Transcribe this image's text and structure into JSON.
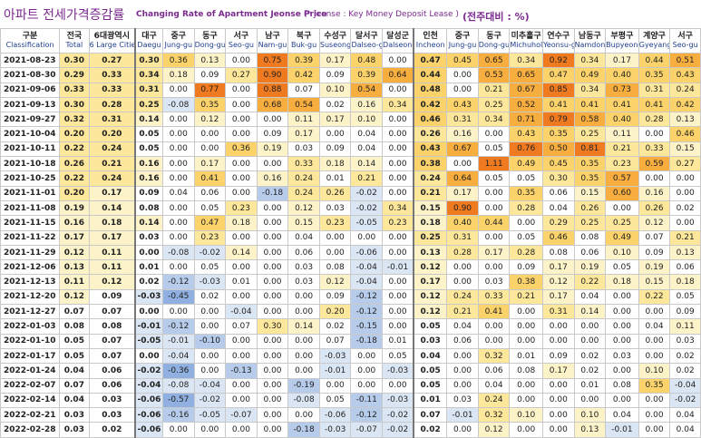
{
  "title": {
    "korean": "아파트 전세가격증감률",
    "english": "Changing Rate of Apartment Jeonse Price",
    "note": "(* Jeonse : Key Money Deposit Lease )",
    "unit": "(전주대비 : %)"
  },
  "columns": [
    {
      "ko": "구분",
      "en": "Classification"
    },
    {
      "ko": "전국",
      "en": "Total"
    },
    {
      "ko": "6대광역시",
      "en": "6 Large Cities"
    },
    {
      "ko": "대구",
      "en": "Daegu"
    },
    {
      "ko": "중구",
      "en": "Jung-gu"
    },
    {
      "ko": "동구",
      "en": "Dong-gu"
    },
    {
      "ko": "서구",
      "en": "Seo-gu"
    },
    {
      "ko": "남구",
      "en": "Nam-gu"
    },
    {
      "ko": "북구",
      "en": "Buk-gu"
    },
    {
      "ko": "수성구",
      "en": "Suseong-gu"
    },
    {
      "ko": "달서구",
      "en": "Dalseo-gu"
    },
    {
      "ko": "달성군",
      "en": "Dalseong-gun"
    },
    {
      "ko": "인천",
      "en": "Incheon"
    },
    {
      "ko": "중구",
      "en": "Jung-gu"
    },
    {
      "ko": "동구",
      "en": "Dong-gu"
    },
    {
      "ko": "미추홀구",
      "en": "Michuhol-gu"
    },
    {
      "ko": "연수구",
      "en": "Yeonsu-gu"
    },
    {
      "ko": "남동구",
      "en": "Namdong-gu"
    },
    {
      "ko": "부평구",
      "en": "Bupyeong-gu"
    },
    {
      "ko": "계양구",
      "en": "Gyeyang-gu"
    },
    {
      "ko": "서구",
      "en": "Seo-gu"
    }
  ],
  "rows": [
    {
      "date": "2021-08-23",
      "v": [
        "0.30",
        "0.27",
        "0.30",
        "0.36",
        "0.13",
        "0.00",
        "0.75",
        "0.39",
        "0.17",
        "0.48",
        "0.00",
        "0.47",
        "0.45",
        "0.65",
        "0.34",
        "0.92",
        "0.34",
        "0.17",
        "0.44",
        "0.51"
      ]
    },
    {
      "date": "2021-08-30",
      "v": [
        "0.29",
        "0.33",
        "0.34",
        "0.18",
        "0.09",
        "0.27",
        "0.90",
        "0.42",
        "0.09",
        "0.39",
        "0.64",
        "0.44",
        "0.00",
        "0.53",
        "0.65",
        "0.47",
        "0.49",
        "0.40",
        "0.35",
        "0.43"
      ]
    },
    {
      "date": "2021-09-06",
      "v": [
        "0.33",
        "0.33",
        "0.31",
        "0.00",
        "0.77",
        "0.00",
        "0.88",
        "0.07",
        "0.10",
        "0.54",
        "0.00",
        "0.48",
        "0.00",
        "0.21",
        "0.67",
        "0.85",
        "0.34",
        "0.73",
        "0.31",
        "0.24"
      ]
    },
    {
      "date": "2021-09-13",
      "v": [
        "0.30",
        "0.28",
        "0.25",
        "-0.08",
        "0.35",
        "0.00",
        "0.68",
        "0.54",
        "0.02",
        "0.16",
        "0.34",
        "0.42",
        "0.43",
        "0.25",
        "0.52",
        "0.41",
        "0.41",
        "0.41",
        "0.41",
        "0.42"
      ]
    },
    {
      "date": "2021-09-27",
      "v": [
        "0.32",
        "0.31",
        "0.14",
        "0.00",
        "0.12",
        "0.00",
        "0.00",
        "0.11",
        "0.17",
        "0.10",
        "0.00",
        "0.46",
        "0.31",
        "0.34",
        "0.71",
        "0.79",
        "0.58",
        "0.40",
        "0.28",
        "0.13"
      ]
    },
    {
      "date": "2021-10-04",
      "v": [
        "0.20",
        "0.20",
        "0.05",
        "0.00",
        "0.00",
        "0.00",
        "0.09",
        "0.17",
        "0.00",
        "0.04",
        "0.00",
        "0.26",
        "0.16",
        "0.00",
        "0.43",
        "0.35",
        "0.25",
        "0.11",
        "0.00",
        "0.46"
      ]
    },
    {
      "date": "2021-10-11",
      "v": [
        "0.22",
        "0.24",
        "0.05",
        "0.00",
        "0.00",
        "0.36",
        "0.19",
        "0.03",
        "0.09",
        "0.04",
        "0.00",
        "0.43",
        "0.67",
        "0.05",
        "0.76",
        "0.50",
        "0.81",
        "0.21",
        "0.33",
        "0.15"
      ]
    },
    {
      "date": "2021-10-18",
      "v": [
        "0.26",
        "0.21",
        "0.16",
        "0.00",
        "0.17",
        "0.00",
        "0.00",
        "0.33",
        "0.18",
        "0.14",
        "0.00",
        "0.38",
        "0.00",
        "1.11",
        "0.49",
        "0.45",
        "0.35",
        "0.23",
        "0.59",
        "0.27"
      ]
    },
    {
      "date": "2021-10-25",
      "v": [
        "0.22",
        "0.24",
        "0.16",
        "0.00",
        "0.41",
        "0.00",
        "0.16",
        "0.24",
        "0.01",
        "0.21",
        "0.00",
        "0.24",
        "0.64",
        "0.05",
        "0.05",
        "0.30",
        "0.35",
        "0.57",
        "0.00",
        "0.00"
      ]
    },
    {
      "date": "2021-11-01",
      "v": [
        "0.20",
        "0.17",
        "0.09",
        "0.04",
        "0.06",
        "0.00",
        "-0.18",
        "0.24",
        "0.26",
        "-0.02",
        "0.00",
        "0.21",
        "0.17",
        "0.00",
        "0.35",
        "0.06",
        "0.15",
        "0.60",
        "0.16",
        "0.00"
      ]
    },
    {
      "date": "2021-11-08",
      "v": [
        "0.19",
        "0.14",
        "0.08",
        "0.00",
        "0.05",
        "0.23",
        "0.00",
        "0.12",
        "0.03",
        "-0.02",
        "0.34",
        "0.15",
        "0.90",
        "0.00",
        "0.28",
        "0.04",
        "0.26",
        "0.00",
        "0.26",
        "0.02"
      ]
    },
    {
      "date": "2021-11-15",
      "v": [
        "0.16",
        "0.18",
        "0.14",
        "0.00",
        "0.47",
        "0.18",
        "0.00",
        "0.15",
        "0.23",
        "-0.05",
        "0.23",
        "0.18",
        "0.40",
        "0.44",
        "0.00",
        "0.29",
        "0.25",
        "0.25",
        "0.12",
        "0.00"
      ]
    },
    {
      "date": "2021-11-22",
      "v": [
        "0.17",
        "0.17",
        "0.03",
        "0.00",
        "0.23",
        "0.00",
        "0.00",
        "0.04",
        "0.00",
        "0.00",
        "0.00",
        "0.25",
        "0.31",
        "0.00",
        "0.05",
        "0.46",
        "0.08",
        "0.49",
        "0.07",
        "0.21"
      ]
    },
    {
      "date": "2021-11-29",
      "v": [
        "0.12",
        "0.11",
        "0.00",
        "-0.08",
        "-0.02",
        "0.14",
        "0.00",
        "0.06",
        "0.00",
        "-0.06",
        "0.00",
        "0.13",
        "0.28",
        "0.17",
        "0.28",
        "0.08",
        "0.06",
        "0.10",
        "0.09",
        "0.13"
      ]
    },
    {
      "date": "2021-12-06",
      "v": [
        "0.13",
        "0.11",
        "0.01",
        "0.00",
        "0.05",
        "0.00",
        "0.00",
        "0.03",
        "0.08",
        "-0.04",
        "-0.01",
        "0.12",
        "0.00",
        "0.00",
        "0.09",
        "0.17",
        "0.19",
        "0.05",
        "0.19",
        "0.06"
      ]
    },
    {
      "date": "2021-12-13",
      "v": [
        "0.11",
        "0.12",
        "0.02",
        "-0.12",
        "-0.03",
        "0.01",
        "0.00",
        "0.03",
        "0.12",
        "-0.04",
        "0.00",
        "0.17",
        "0.00",
        "0.03",
        "0.38",
        "0.12",
        "0.22",
        "0.18",
        "0.15",
        "0.18"
      ]
    },
    {
      "date": "2021-12-20",
      "v": [
        "0.12",
        "0.09",
        "-0.03",
        "-0.45",
        "0.02",
        "0.00",
        "0.00",
        "0.00",
        "0.09",
        "-0.12",
        "0.00",
        "0.12",
        "0.24",
        "0.33",
        "0.21",
        "0.17",
        "0.04",
        "0.00",
        "0.22",
        "0.05"
      ]
    },
    {
      "date": "2021-12-27",
      "v": [
        "0.07",
        "0.07",
        "0.00",
        "0.00",
        "0.00",
        "-0.04",
        "0.00",
        "0.00",
        "0.20",
        "-0.12",
        "0.00",
        "0.12",
        "0.21",
        "0.41",
        "0.00",
        "0.31",
        "0.14",
        "0.00",
        "0.00",
        "0.09"
      ]
    },
    {
      "date": "2022-01-03",
      "v": [
        "0.08",
        "0.08",
        "-0.01",
        "-0.12",
        "0.00",
        "0.07",
        "0.30",
        "0.14",
        "0.02",
        "-0.15",
        "0.00",
        "0.05",
        "0.04",
        "0.00",
        "0.00",
        "0.00",
        "0.00",
        "0.00",
        "0.04",
        "0.11"
      ]
    },
    {
      "date": "2022-01-10",
      "v": [
        "0.05",
        "0.07",
        "-0.05",
        "-0.01",
        "-0.10",
        "0.00",
        "0.00",
        "0.00",
        "0.07",
        "-0.18",
        "0.01",
        "0.03",
        "0.06",
        "0.00",
        "0.00",
        "0.00",
        "0.00",
        "0.00",
        "0.00",
        "0.03"
      ]
    },
    {
      "date": "2022-01-17",
      "v": [
        "0.05",
        "0.07",
        "0.00",
        "-0.04",
        "0.00",
        "0.00",
        "0.00",
        "0.00",
        "-0.03",
        "0.00",
        "0.05",
        "0.04",
        "0.00",
        "0.32",
        "0.01",
        "0.09",
        "0.02",
        "0.03",
        "0.00",
        "0.02"
      ]
    },
    {
      "date": "2022-01-24",
      "v": [
        "0.04",
        "0.06",
        "-0.02",
        "-0.36",
        "0.00",
        "-0.13",
        "0.00",
        "0.00",
        "-0.01",
        "0.00",
        "-0.03",
        "0.05",
        "0.00",
        "0.06",
        "0.08",
        "0.17",
        "0.02",
        "0.00",
        "0.10",
        "0.02"
      ]
    },
    {
      "date": "2022-02-07",
      "v": [
        "0.07",
        "0.06",
        "-0.04",
        "-0.08",
        "-0.04",
        "0.00",
        "0.00",
        "-0.19",
        "0.00",
        "0.00",
        "0.00",
        "0.05",
        "0.00",
        "0.04",
        "0.00",
        "0.00",
        "0.01",
        "0.08",
        "0.35",
        "-0.04"
      ]
    },
    {
      "date": "2022-02-14",
      "v": [
        "0.04",
        "0.03",
        "-0.06",
        "-0.57",
        "-0.02",
        "0.00",
        "0.00",
        "-0.08",
        "0.05",
        "-0.11",
        "-0.03",
        "0.01",
        "0.03",
        "0.24",
        "0.00",
        "0.00",
        "0.00",
        "0.00",
        "0.00",
        "-0.02"
      ]
    },
    {
      "date": "2022-02-21",
      "v": [
        "0.03",
        "0.03",
        "-0.06",
        "-0.16",
        "-0.05",
        "-0.07",
        "0.00",
        "0.00",
        "-0.06",
        "-0.12",
        "-0.02",
        "0.07",
        "-0.01",
        "0.32",
        "0.10",
        "0.00",
        "0.10",
        "0.04",
        "0.00",
        "0.04"
      ]
    },
    {
      "date": "2022-02-28",
      "v": [
        "0.03",
        "0.02",
        "-0.06",
        "0.00",
        "0.00",
        "0.00",
        "0.00",
        "-0.18",
        "-0.03",
        "-0.07",
        "-0.02",
        "0.02",
        "0.00",
        "0.12",
        "0.00",
        "0.00",
        "0.13",
        "-0.01",
        "0.00",
        "0.04"
      ]
    }
  ]
}
